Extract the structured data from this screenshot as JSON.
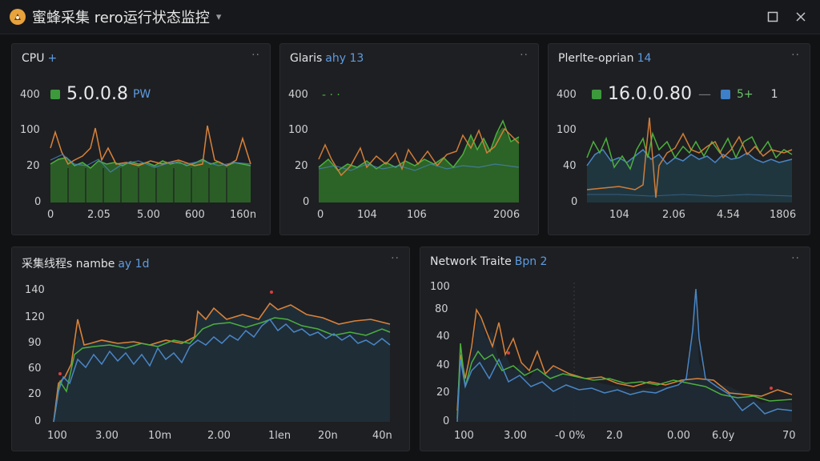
{
  "window": {
    "title": "蜜蜂采集 rero运行状态监控",
    "caret": "▾",
    "restore_icon": "restore-icon",
    "close_icon": "close-icon"
  },
  "panels": [
    {
      "id": "cpu",
      "title": "CPU",
      "subtitle": "+",
      "menu": "··",
      "stat": {
        "value": "5.0.0.8",
        "unit": "PW",
        "color": "#3c9a3c"
      },
      "y_ticks": [
        "400",
        "100",
        "20",
        "0"
      ],
      "x_ticks": [
        "0",
        "2.05",
        "5.00",
        "600",
        "160n"
      ]
    },
    {
      "id": "glaris",
      "title": "Glaris",
      "subtitle": "ahy 13",
      "menu": "··",
      "stat_line": "- · ·",
      "y_ticks": [
        "400",
        "100",
        "20",
        "0"
      ],
      "x_ticks": [
        "0",
        "104",
        "106",
        "2006"
      ]
    },
    {
      "id": "plerite",
      "title": "Plerlte-oprian",
      "subtitle": "14",
      "menu": "··",
      "stat": {
        "value": "16.0.0.80",
        "extra": "5+",
        "extra2": "1",
        "color": "#3c9a3c",
        "color2": "#3d7fc8"
      },
      "y_ticks": [
        "400",
        "100",
        "40",
        "0"
      ],
      "x_ticks": [
        "104",
        "2.06",
        "4.54",
        "1806"
      ]
    },
    {
      "id": "threads",
      "title": "采集线程s nambe",
      "subtitle": "ay 1d",
      "menu": "··",
      "y_ticks": [
        "140",
        "120",
        "90",
        "60",
        "20",
        "0"
      ],
      "x_ticks": [
        "100",
        "3.00",
        "10m",
        "2.00",
        "1len",
        "20n",
        "40n"
      ]
    },
    {
      "id": "network",
      "title": "Network Traite",
      "subtitle": "Bpn 2",
      "menu": "··",
      "y_ticks": [
        "100",
        "80",
        "40",
        "40",
        "20",
        "0"
      ],
      "x_ticks": [
        "100",
        "3.00",
        "-0 0%",
        "2.0",
        "0.00",
        "6.0y",
        "70"
      ]
    }
  ],
  "colors": {
    "green": "#4caf3e",
    "orange": "#d9823a",
    "blue": "#4a86c5",
    "red": "#d64040"
  }
}
